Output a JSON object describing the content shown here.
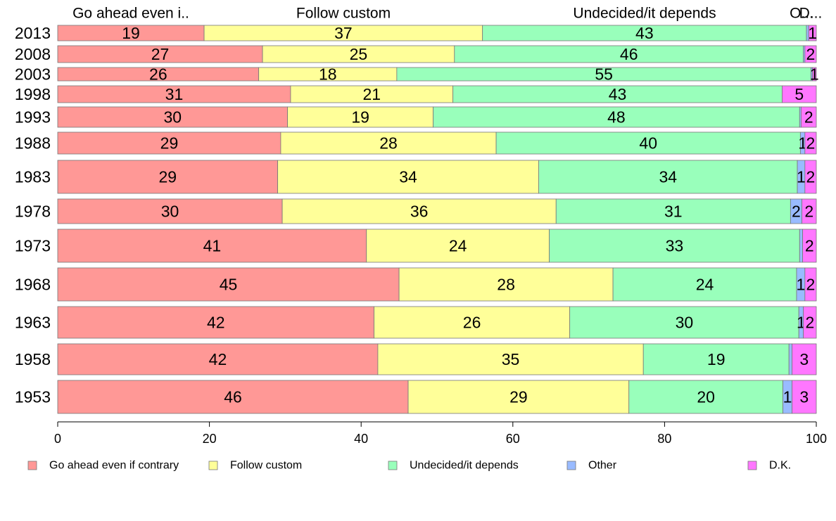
{
  "chart_data": {
    "type": "bar",
    "orientation": "horizontal",
    "stacked": true,
    "categories": [
      "2013",
      "2008",
      "2003",
      "1998",
      "1993",
      "1988",
      "1983",
      "1978",
      "1973",
      "1968",
      "1963",
      "1958",
      "1953"
    ],
    "series": [
      {
        "name": "Go ahead even if contrary",
        "color": "#ff9896",
        "values": [
          19.3,
          27,
          26.5,
          30.7,
          30.3,
          29.4,
          29,
          29.6,
          40.7,
          45,
          41.7,
          42.2,
          46.2
        ]
      },
      {
        "name": "Follow custom",
        "color": "#ffff99",
        "values": [
          36.7,
          25.3,
          18.2,
          21.4,
          19.2,
          28.4,
          34.4,
          36.1,
          24.1,
          28.2,
          25.8,
          35.0,
          29.1
        ]
      },
      {
        "name": "Undecided/it depends",
        "color": "#99ffbb",
        "values": [
          42.7,
          46.0,
          54.6,
          43.4,
          48.3,
          40.1,
          34.1,
          30.9,
          33.0,
          24.2,
          30.2,
          19.2,
          20.3
        ]
      },
      {
        "name": "Other",
        "color": "#99bbff",
        "values": [
          0.3,
          0.2,
          0.2,
          0.0,
          0.2,
          0.6,
          1.0,
          1.5,
          0.4,
          1.1,
          0.6,
          0.4,
          1.2
        ]
      },
      {
        "name": "D.K.",
        "color": "#ff77ff",
        "values": [
          1.0,
          1.5,
          0.5,
          4.5,
          2.0,
          1.5,
          1.5,
          1.9,
          1.8,
          1.5,
          1.7,
          3.2,
          3.2
        ]
      }
    ],
    "data_labels": [
      [
        "19",
        "37",
        "43",
        "",
        "1"
      ],
      [
        "27",
        "25",
        "46",
        "",
        "2"
      ],
      [
        "26",
        "18",
        "55",
        "",
        "1"
      ],
      [
        "31",
        "21",
        "43",
        "",
        "5"
      ],
      [
        "30",
        "19",
        "48",
        "",
        "2"
      ],
      [
        "29",
        "28",
        "40",
        "1",
        "2"
      ],
      [
        "29",
        "34",
        "34",
        "1",
        "2"
      ],
      [
        "30",
        "36",
        "31",
        "2",
        "2"
      ],
      [
        "41",
        "24",
        "33",
        "",
        "2"
      ],
      [
        "45",
        "28",
        "24",
        "1",
        "2"
      ],
      [
        "42",
        "26",
        "30",
        "1",
        "2"
      ],
      [
        "42",
        "35",
        "19",
        "",
        "3"
      ],
      [
        "46",
        "29",
        "20",
        "1",
        "3"
      ]
    ],
    "top_labels": [
      "Go ahead even i..",
      "Follow custom",
      "Undecided/it depends",
      "O...",
      "D..."
    ],
    "xlim": [
      0,
      100
    ],
    "xticks": [
      "0",
      "20",
      "40",
      "60",
      "80",
      "100"
    ],
    "grid": false,
    "legend": "bottom"
  }
}
